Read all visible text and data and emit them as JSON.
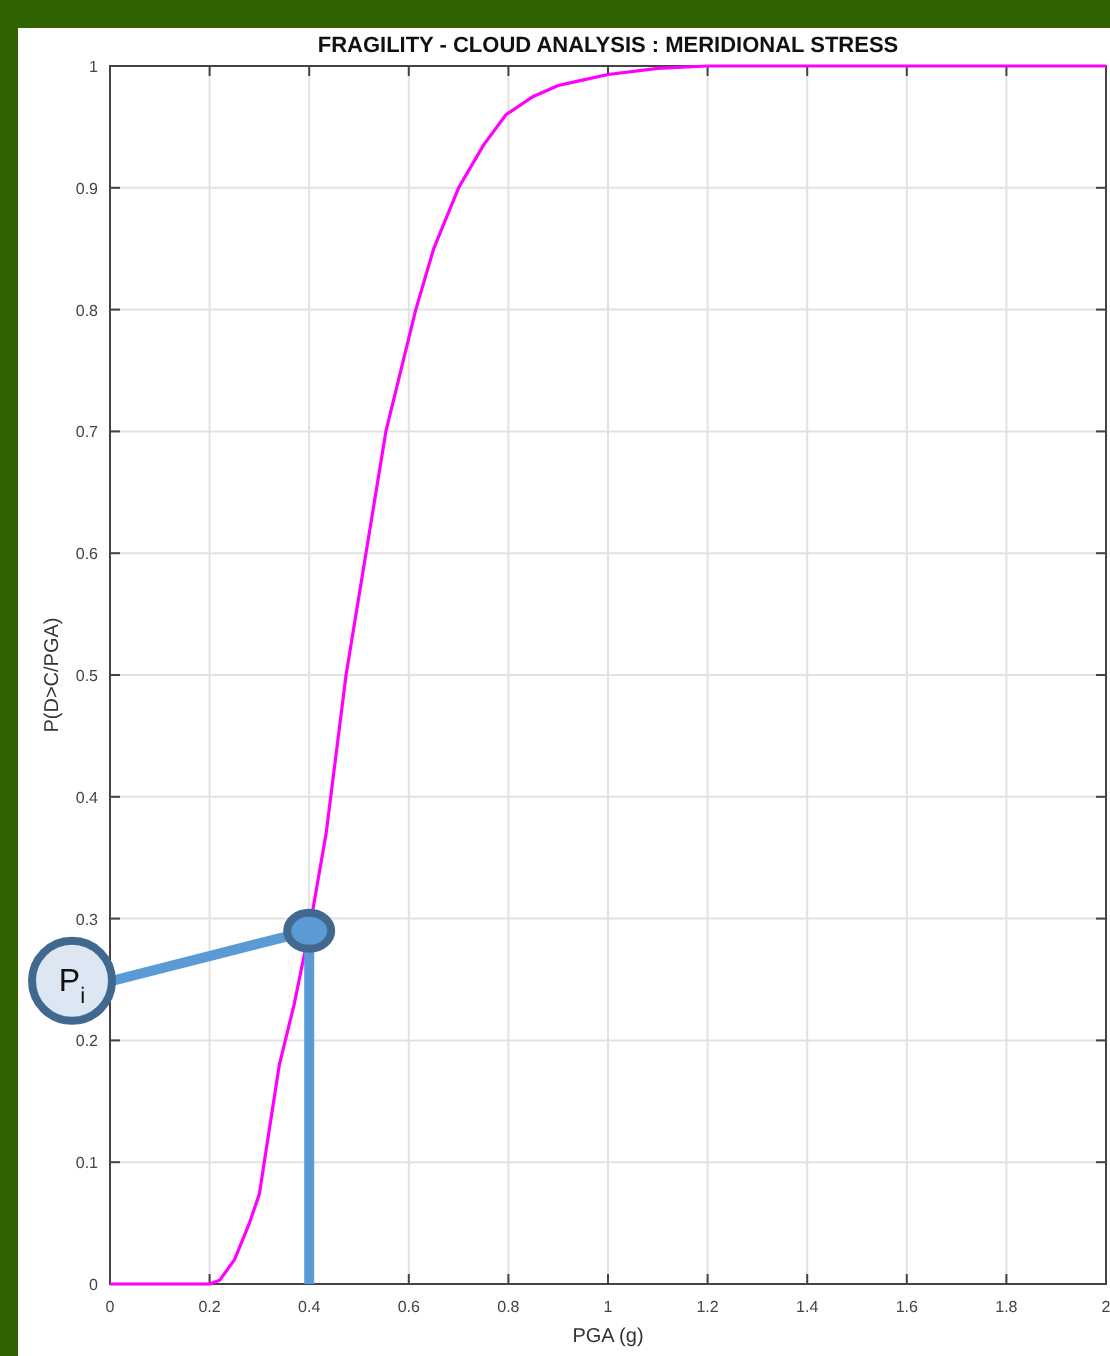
{
  "chart_data": {
    "type": "line",
    "title": "FRAGILITY - CLOUD ANALYSIS : MERIDIONAL STRESS",
    "xlabel": "PGA (g)",
    "ylabel": "P(D>C/PGA)",
    "series": [
      {
        "color": "#ff00ff",
        "x": [
          0,
          0.1,
          0.2,
          0.22,
          0.25,
          0.28,
          0.3,
          0.34,
          0.37,
          0.4,
          0.434,
          0.474,
          0.514,
          0.554,
          0.614,
          0.65,
          0.7,
          0.75,
          0.795,
          0.85,
          0.9,
          0.944,
          1,
          1.1,
          1.2,
          1.5,
          2
        ],
        "values": [
          0,
          0,
          0,
          0.003,
          0.02,
          0.05,
          0.074,
          0.18,
          0.23,
          0.29,
          0.37,
          0.5,
          0.6,
          0.7,
          0.8,
          0.85,
          0.9,
          0.935,
          0.96,
          0.975,
          0.984,
          0.988,
          0.993,
          0.998,
          1,
          1,
          1
        ]
      }
    ],
    "xlim": [
      0,
      2
    ],
    "xticks": [
      0,
      0.2,
      0.4,
      0.6,
      0.8,
      1,
      1.2,
      1.4,
      1.6,
      1.8,
      2
    ],
    "ylim": [
      0,
      1
    ],
    "yticks": [
      0,
      0.1,
      0.2,
      0.3,
      0.4,
      0.5,
      0.6,
      0.7,
      0.8,
      0.9,
      1
    ],
    "grid": true,
    "marker": "none",
    "line_style": "solid",
    "annotations": [
      {
        "text": "P$_{i}$",
        "x": 0.4,
        "y": 0.29
      }
    ]
  }
}
